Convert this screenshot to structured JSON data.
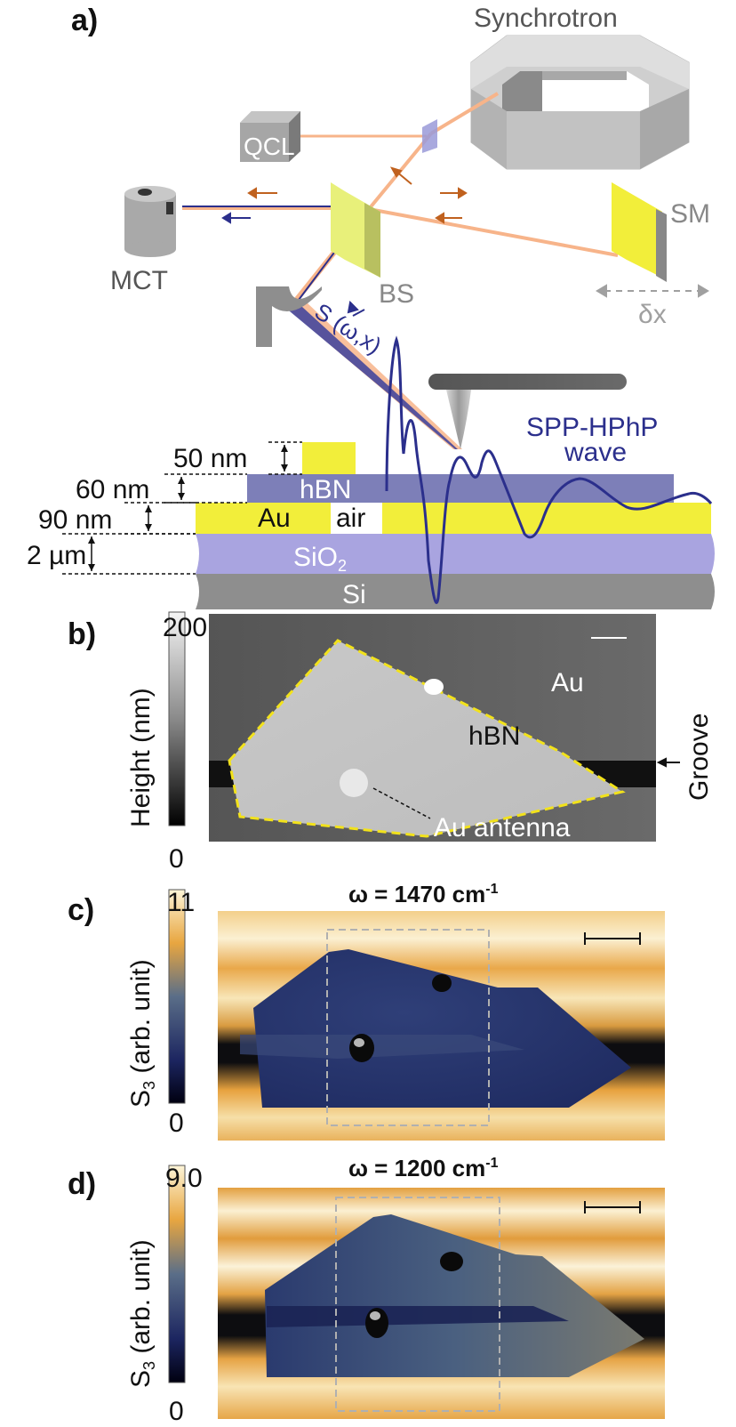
{
  "panel_a": {
    "label": "a)",
    "synchrotron": "Synchrotron",
    "qcl": "QCL",
    "mct": "MCT",
    "bs": "BS",
    "sm": "SM",
    "delta_x": "δx",
    "signal": "S (ω,x)",
    "wave_line1": "SPP-HPhP",
    "wave_line2": "wave",
    "dim_50": "50 nm",
    "dim_60": "60 nm",
    "dim_90": "90 nm",
    "dim_2": "2 µm",
    "layer_hbn": "hBN",
    "layer_au": "Au",
    "layer_air": "air",
    "layer_sio2": "SiO",
    "layer_sio2_sub": "2",
    "layer_si": "Si"
  },
  "panel_b": {
    "label": "b)",
    "colorbar_title": "Height (nm)",
    "colorbar_max": "200",
    "colorbar_min": "0",
    "au": "Au",
    "hbn": "hBN",
    "groove": "Groove",
    "antenna": "Au antenna"
  },
  "panel_c": {
    "label": "c)",
    "title_main": "ω = 1470 cm",
    "title_sup": "-1",
    "colorbar_title_main": "S",
    "colorbar_title_sub": "3",
    "colorbar_title_rest": " (arb. unit)",
    "colorbar_max": "11",
    "colorbar_min": "0"
  },
  "panel_d": {
    "label": "d)",
    "title_main": "ω = 1200 cm",
    "title_sup": "-1",
    "colorbar_title_main": "S",
    "colorbar_title_sub": "3",
    "colorbar_title_rest": " (arb. unit)",
    "colorbar_max": "9.0",
    "colorbar_min": "0"
  },
  "colors": {
    "gold": "#f2ee3a",
    "hbn": "#7d7fb8",
    "sio2": "#a9a4e0",
    "si": "#8e8e8e",
    "beam": "#f7b48a",
    "navy": "#2b2f8c",
    "dashed_outline": "#f2e21b"
  }
}
